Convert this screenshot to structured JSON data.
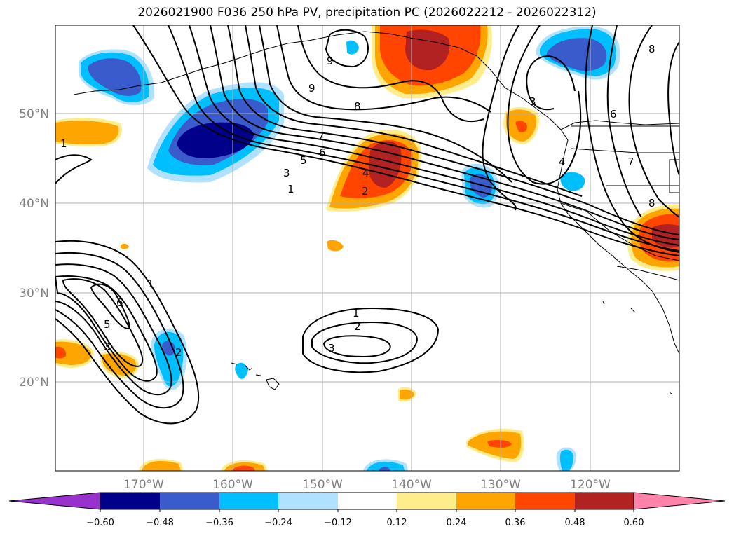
{
  "title": "2026021900 F036 250 hPa PV, precipitation PC (2026022212 - 2026022312)",
  "lat_labels": [
    "50°N",
    "40°N",
    "30°N",
    "20°N"
  ],
  "lon_labels": [
    "170°W",
    "160°W",
    "150°W",
    "140°W",
    "130°W",
    "120°W"
  ],
  "colorbar": {
    "ticks": [
      "−0.60",
      "−0.48",
      "−0.36",
      "−0.24",
      "−0.12",
      "0.12",
      "0.24",
      "0.36",
      "0.48",
      "0.60"
    ],
    "colors": [
      "#9932cc",
      "#00008b",
      "#3a5bcc",
      "#00bfff",
      "#b0e2ff",
      "#ffffff",
      "#ffec8b",
      "#ffa500",
      "#ff4500",
      "#b22222",
      "#ff82ab"
    ]
  },
  "contour_labels": [
    "1",
    "2",
    "3",
    "4",
    "5",
    "6",
    "7",
    "8",
    "9"
  ]
}
